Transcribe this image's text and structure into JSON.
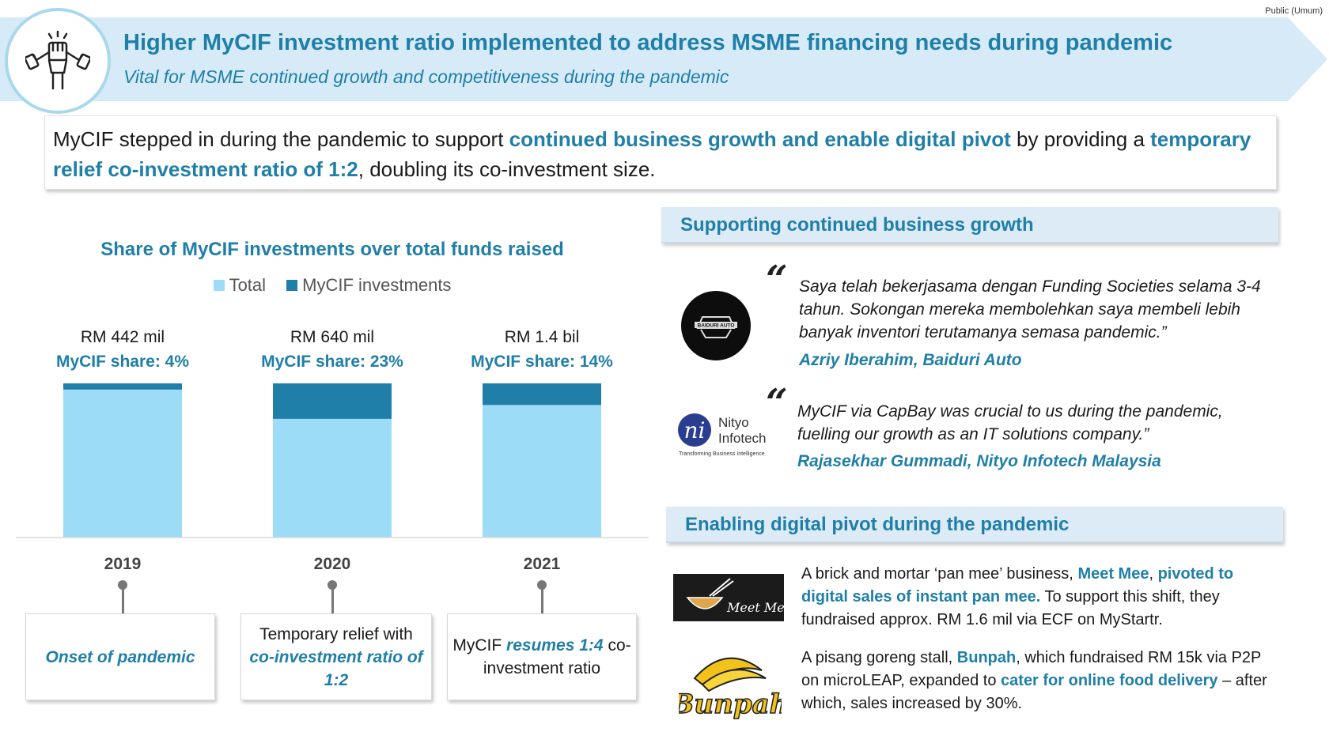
{
  "classification": "Public (Umum)",
  "header": {
    "title": "Higher MyCIF investment ratio implemented to address MSME financing needs during  pandemic",
    "subtitle": "Vital for MSME continued growth and competitiveness during the pandemic",
    "icon": "raised-fist-icon"
  },
  "intro": {
    "part1": "MyCIF stepped in during the pandemic to support ",
    "hl1": "continued business growth and enable digital pivot",
    "part2": " by providing a ",
    "hl2": "temporary relief co-investment ratio of 1:2",
    "part3": ", doubling its co-investment size."
  },
  "chart_data": {
    "type": "bar",
    "title": "Share of MyCIF investments over total funds raised",
    "categories": [
      "2019",
      "2020",
      "2021"
    ],
    "series": [
      {
        "name": "Total",
        "values": [
          100,
          100,
          100
        ],
        "color": "#9ddcf6"
      },
      {
        "name": "MyCIF investments",
        "values": [
          4,
          23,
          14
        ],
        "color": "#1f7fa8"
      }
    ],
    "total_labels": [
      "RM 442 mil",
      "RM 640 mil",
      "RM 1.4 bil"
    ],
    "share_labels": [
      "MyCIF share:  4%",
      "MyCIF share:  23%",
      "MyCIF share:  14%"
    ],
    "ylim": [
      0,
      100
    ],
    "stacked": true,
    "legend_position": "top-center",
    "grid": false
  },
  "timeline": [
    {
      "pre": "",
      "hl": "Onset of pandemic",
      "post": ""
    },
    {
      "pre": "Temporary relief with ",
      "hl": "co-investment ratio of 1:2",
      "post": ""
    },
    {
      "pre": "MyCIF ",
      "hl": "resumes 1:4",
      "post": " co-investment ratio"
    }
  ],
  "growth": {
    "heading": "Supporting continued business growth",
    "quotes": [
      {
        "text": "Saya telah bekerjasama dengan Funding Societies selama 3-4 tahun. Sokongan mereka membolehkan saya membeli lebih banyak inventori terutamanya semasa pandemic.”",
        "author": "Azriy Iberahim,  Baiduri Auto",
        "logo": "BAIDURI AUTO"
      },
      {
        "text": "MyCIF via CapBay was crucial to us during the pandemic, fuelling our growth as an IT solutions company.”",
        "author": "Rajasekhar  Gummadi, Nityo Infotech Malaysia",
        "logo_name1": "Nityo",
        "logo_name2": "Infotech",
        "logo_tagline": "Transforming Business Intelligence"
      }
    ]
  },
  "pivot": {
    "heading": "Enabling digital pivot during the pandemic",
    "items": [
      {
        "t1": "A brick and mortar ‘pan mee’ business, ",
        "h1": "Meet Mee",
        "t2": ", ",
        "h2": "pivoted to digital sales of instant pan mee.",
        "t3": " To support this shift, they fundraised approx. RM 1.6 mil via ECF on MyStartr.",
        "logo": "Meet Mee"
      },
      {
        "t1": "A pisang goreng stall, ",
        "h1": "Bunpah",
        "t2": ", which fundraised RM 15k via P2P on microLEAP, expanded to ",
        "h2": "cater for online food delivery",
        "t3": " – after which, sales increased by 30%.",
        "logo": "Bunpah"
      }
    ]
  }
}
